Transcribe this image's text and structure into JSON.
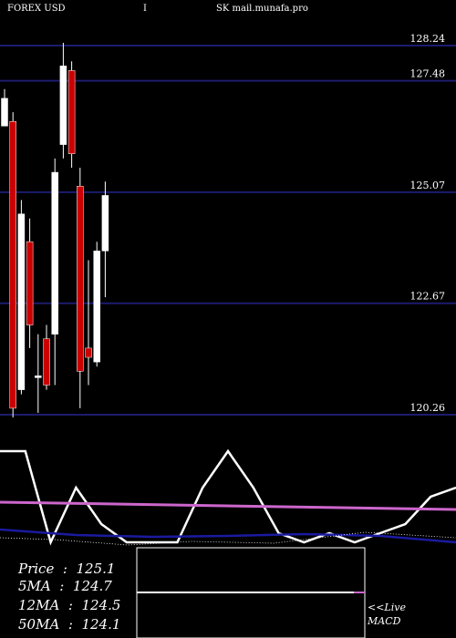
{
  "header": {
    "symbol": "FOREX  USD",
    "marker": "I",
    "site": "SK mail.munafa.pro"
  },
  "stats": [
    {
      "label": "Price",
      "value": "125.1"
    },
    {
      "label": "5MA",
      "value": "124.7"
    },
    {
      "label": "12MA",
      "value": "124.5"
    },
    {
      "label": "50MA",
      "value": "124.1"
    }
  ],
  "live_label": "<<Live",
  "macd_label": "MACD",
  "colors": {
    "background": "#000000",
    "level_line": "#1c1c6e",
    "bull_candle": "#ffffff",
    "bear_candle": "#cc0000",
    "ma_pink": "#cc66cc",
    "ma_blue": "#1a1aa0"
  },
  "chart_data": {
    "type": "candlestick",
    "price_levels": [
      128.24,
      127.48,
      125.07,
      122.67,
      120.26
    ],
    "candles": [
      {
        "open": 127.1,
        "high": 127.3,
        "low": 126.5,
        "close": 126.5,
        "dir": "up"
      },
      {
        "open": 126.6,
        "high": 126.8,
        "low": 120.2,
        "close": 120.4,
        "dir": "down"
      },
      {
        "open": 120.8,
        "high": 124.9,
        "low": 120.7,
        "close": 124.6,
        "dir": "up"
      },
      {
        "open": 124.0,
        "high": 124.5,
        "low": 121.7,
        "close": 122.2,
        "dir": "down"
      },
      {
        "open": 121.1,
        "high": 122.0,
        "low": 120.3,
        "close": 121.1,
        "dir": "up"
      },
      {
        "open": 121.9,
        "high": 122.2,
        "low": 120.8,
        "close": 120.9,
        "dir": "down"
      },
      {
        "open": 122.0,
        "high": 125.8,
        "low": 120.9,
        "close": 125.5,
        "dir": "up"
      },
      {
        "open": 127.8,
        "high": 128.3,
        "low": 125.8,
        "close": 126.1,
        "dir": "up"
      },
      {
        "open": 127.7,
        "high": 127.9,
        "low": 125.6,
        "close": 125.9,
        "dir": "down"
      },
      {
        "open": 125.2,
        "high": 125.6,
        "low": 120.4,
        "close": 121.2,
        "dir": "down"
      },
      {
        "open": 121.7,
        "high": 123.6,
        "low": 120.9,
        "close": 121.5,
        "dir": "down"
      },
      {
        "open": 121.4,
        "high": 124.0,
        "low": 121.3,
        "close": 123.8,
        "dir": "up"
      },
      {
        "open": 123.8,
        "high": 125.3,
        "low": 122.8,
        "close": 125.0,
        "dir": "up"
      }
    ],
    "indicator_line": [
      6,
      6,
      -4,
      2,
      -2,
      -4,
      -4,
      -4,
      2,
      6,
      2,
      -3,
      -4,
      -3,
      -4,
      -3,
      -2,
      1,
      2
    ],
    "ma_pink": [
      2,
      1.2
    ],
    "ma_blue": [
      0.2,
      -0.4,
      -0.6,
      -0.5,
      -0.3,
      -0.5,
      -1.2
    ],
    "macd_line": [
      0
    ],
    "macd_signal": [
      0.3,
      0.05,
      -0.2
    ]
  }
}
